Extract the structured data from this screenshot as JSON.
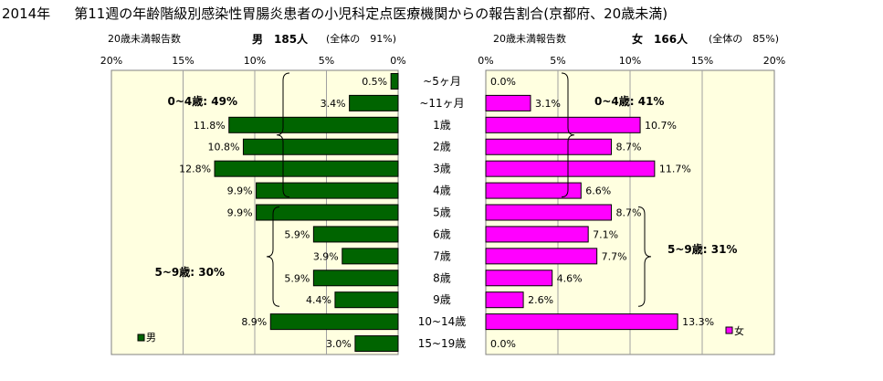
{
  "title": {
    "year": "2014年",
    "text": "第11週の年齢階級別感染性胃腸炎患者の小児科定点医療機関からの報告割合(京都府、20歳未満)"
  },
  "subtitles": {
    "male_caption": "20歳未満報告数",
    "male_count": "男　185人",
    "male_share": "(全体の　91%)",
    "female_caption": "20歳未満報告数",
    "female_count": "女　166人",
    "female_share": "(全体の　85%)"
  },
  "colors": {
    "male_bar": "#006400",
    "female_bar": "#ff00ff",
    "plot_bg": "#ffffe0",
    "grid": "#a0a0a0"
  },
  "chart_data": [
    {
      "type": "bar",
      "orientation": "horizontal",
      "direction": "right-to-left",
      "categories": [
        "~5ヶ月",
        "~11ヶ月",
        "1歳",
        "2歳",
        "3歳",
        "4歳",
        "5歳",
        "6歳",
        "7歳",
        "8歳",
        "9歳",
        "10~14歳",
        "15~19歳"
      ],
      "series": [
        {
          "name": "男",
          "values": [
            0.5,
            3.4,
            11.8,
            10.8,
            12.8,
            9.9,
            9.9,
            5.9,
            3.9,
            5.9,
            4.4,
            8.9,
            3.0
          ],
          "labels": [
            "0.5%",
            "3.4%",
            "11.8%",
            "10.8%",
            "12.8%",
            "9.9%",
            "9.9%",
            "5.9%",
            "3.9%",
            "5.9%",
            "4.4%",
            "8.9%",
            "3.0%"
          ]
        }
      ],
      "xlim": [
        0,
        20
      ],
      "ticks": [
        "20%",
        "15%",
        "10%",
        "5%",
        "0%"
      ],
      "grid": true,
      "legend": "bottom-left",
      "annotations": [
        "0~4歳: 49%",
        "5~9歳: 30%"
      ]
    },
    {
      "type": "bar",
      "orientation": "horizontal",
      "direction": "left-to-right",
      "categories": [
        "~5ヶ月",
        "~11ヶ月",
        "1歳",
        "2歳",
        "3歳",
        "4歳",
        "5歳",
        "6歳",
        "7歳",
        "8歳",
        "9歳",
        "10~14歳",
        "15~19歳"
      ],
      "series": [
        {
          "name": "女",
          "values": [
            0.0,
            3.1,
            10.7,
            8.7,
            11.7,
            6.6,
            8.7,
            7.1,
            7.7,
            4.6,
            2.6,
            13.3,
            0.0
          ],
          "labels": [
            "0.0%",
            "3.1%",
            "10.7%",
            "8.7%",
            "11.7%",
            "6.6%",
            "8.7%",
            "7.1%",
            "7.7%",
            "4.6%",
            "2.6%",
            "13.3%",
            "0.0%"
          ]
        }
      ],
      "xlim": [
        0,
        20
      ],
      "ticks": [
        "0%",
        "5%",
        "10%",
        "15%",
        "20%"
      ],
      "grid": true,
      "legend": "bottom-left",
      "annotations": [
        "0~4歳: 41%",
        "5~9歳: 31%"
      ]
    }
  ]
}
